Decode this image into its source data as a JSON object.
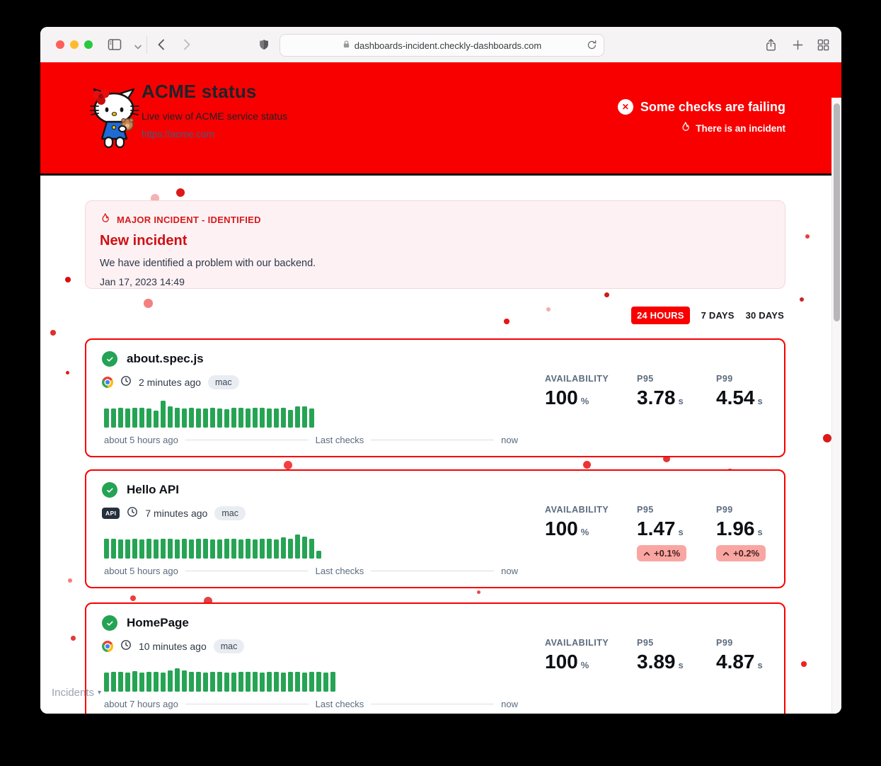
{
  "browser": {
    "url": "dashboards-incident.checkly-dashboards.com"
  },
  "header": {
    "title": "ACME status",
    "subtitle": "Live view of ACME service status",
    "link": "https://acme.com",
    "status_message": "Some checks are failing",
    "incident_message": "There is an incident"
  },
  "incident_banner": {
    "label": "MAJOR INCIDENT - IDENTIFIED",
    "title": "New incident",
    "description": "We have identified a problem with our backend.",
    "timestamp": "Jan 17, 2023 14:49"
  },
  "range_tabs": [
    {
      "label": "24 HOURS",
      "active": true
    },
    {
      "label": "7 DAYS",
      "active": false
    },
    {
      "label": "30 DAYS",
      "active": false
    }
  ],
  "metric_labels": {
    "availability": "AVAILABILITY",
    "p95": "P95",
    "p99": "P99"
  },
  "checks": [
    {
      "name": "about.spec.js",
      "runner": "chrome",
      "last_run": "2 minutes ago",
      "tag": "mac",
      "availability": "100",
      "availability_unit": "%",
      "p95": "3.78",
      "p95_unit": "s",
      "p99": "4.54",
      "p99_unit": "s",
      "footer": {
        "start": "about 5 hours ago",
        "middle": "Last checks",
        "end": "now"
      },
      "bars": [
        0.72,
        0.72,
        0.75,
        0.72,
        0.73,
        0.74,
        0.72,
        0.62,
        1.0,
        0.79,
        0.73,
        0.72,
        0.74,
        0.72,
        0.72,
        0.75,
        0.72,
        0.68,
        0.73,
        0.74,
        0.72,
        0.73,
        0.75,
        0.72,
        0.72,
        0.73,
        0.66,
        0.79,
        0.78,
        0.72
      ]
    },
    {
      "name": "Hello API",
      "runner": "api",
      "runner_badge": "API",
      "last_run": "7 minutes ago",
      "tag": "mac",
      "availability": "100",
      "availability_unit": "%",
      "p95": "1.47",
      "p95_unit": "s",
      "p95_delta": "+0.1%",
      "p99": "1.96",
      "p99_unit": "s",
      "p99_delta": "+0.2%",
      "footer": {
        "start": "about 5 hours ago",
        "middle": "Last checks",
        "end": "now"
      },
      "bars": [
        0.73,
        0.75,
        0.72,
        0.72,
        0.74,
        0.72,
        0.73,
        0.72,
        0.74,
        0.73,
        0.7,
        0.74,
        0.72,
        0.73,
        0.74,
        0.72,
        0.72,
        0.74,
        0.73,
        0.72,
        0.74,
        0.72,
        0.73,
        0.74,
        0.72,
        0.78,
        0.73,
        0.9,
        0.82,
        0.73,
        0.28
      ]
    },
    {
      "name": "HomePage",
      "runner": "chrome",
      "last_run": "10 minutes ago",
      "tag": "mac",
      "availability": "100",
      "availability_unit": "%",
      "p95": "3.89",
      "p95_unit": "s",
      "p99": "4.87",
      "p99_unit": "s",
      "footer": {
        "start": "about 7 hours ago",
        "middle": "Last checks",
        "end": "now"
      },
      "bars": [
        0.72,
        0.73,
        0.74,
        0.72,
        0.76,
        0.72,
        0.73,
        0.74,
        0.72,
        0.8,
        0.86,
        0.78,
        0.73,
        0.74,
        0.72,
        0.73,
        0.74,
        0.72,
        0.72,
        0.74,
        0.73,
        0.74,
        0.72,
        0.73,
        0.74,
        0.72,
        0.73,
        0.74,
        0.72,
        0.73,
        0.74,
        0.72,
        0.73
      ]
    }
  ],
  "footer": {
    "incidents_label": "Incidents"
  },
  "colors": {
    "brand_red": "#f80000",
    "bar_green": "#26a454",
    "badge_pink": "#f9a6a2"
  }
}
